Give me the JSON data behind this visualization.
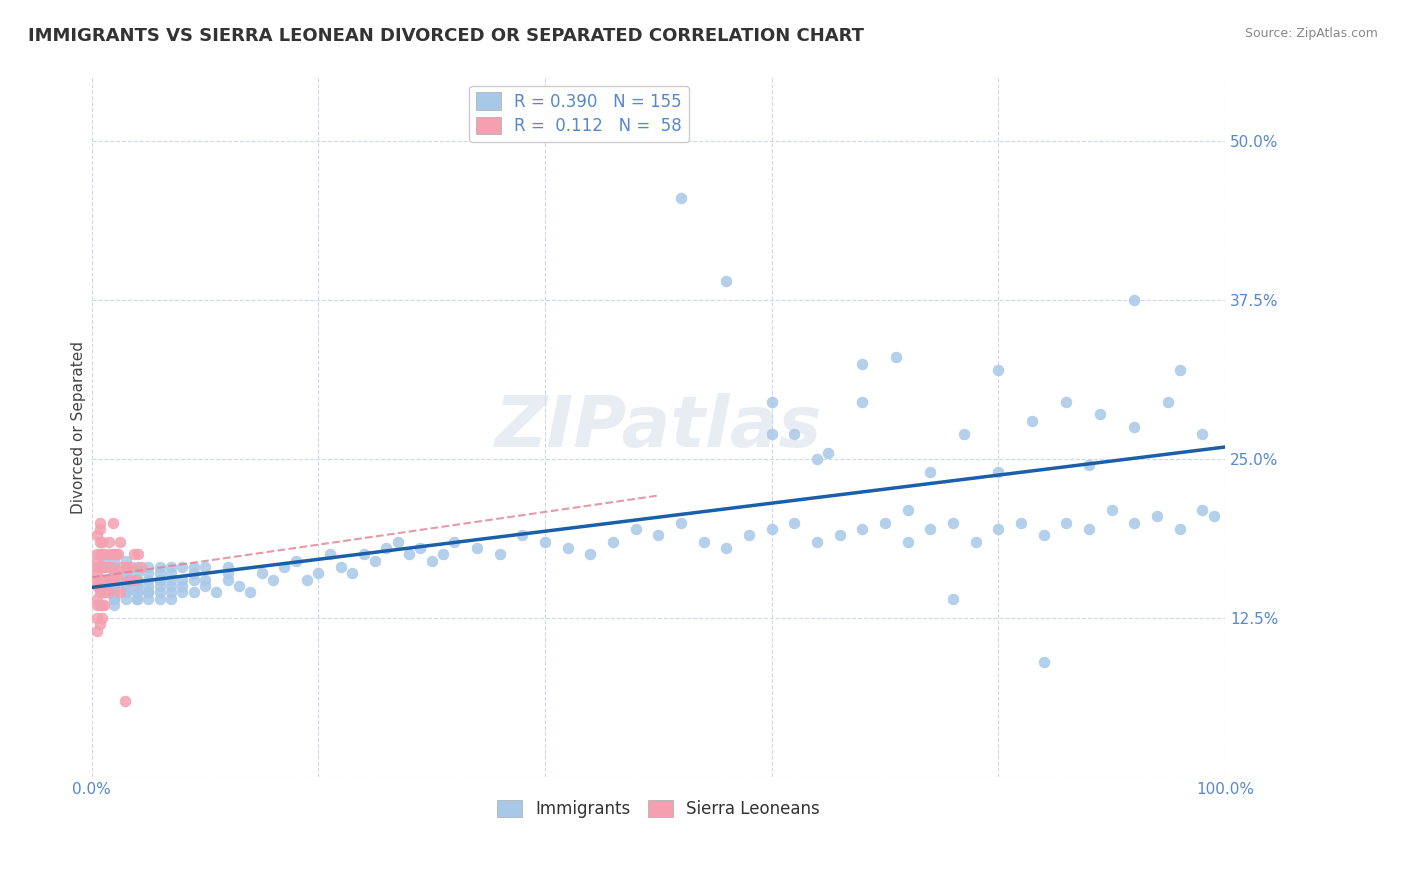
{
  "title": "IMMIGRANTS VS SIERRA LEONEAN DIVORCED OR SEPARATED CORRELATION CHART",
  "source_text": "Source: ZipAtlas.com",
  "watermark": "ZIPatlas",
  "xlabel": "",
  "ylabel": "Divorced or Separated",
  "xlim": [
    0.0,
    1.0
  ],
  "ylim": [
    0.0,
    0.55
  ],
  "yticks": [
    0.0,
    0.125,
    0.25,
    0.375,
    0.5
  ],
  "ytick_labels": [
    "",
    "12.5%",
    "25.0%",
    "37.5%",
    "50.0%"
  ],
  "xtick_labels": [
    "0.0%",
    "",
    "",
    "",
    "",
    "100.0%"
  ],
  "legend_immigrants_R": "0.390",
  "legend_immigrants_N": "155",
  "legend_sierraleoneans_R": "0.112",
  "legend_sierraleoneans_N": "58",
  "immigrants_color": "#a8c8e8",
  "sierraleoneans_color": "#f4a0b0",
  "immigrants_line_color": "#1a5fa8",
  "sierraleoneans_line_color": "#e08090",
  "background_color": "#ffffff",
  "grid_color": "#d0d8e8",
  "title_fontsize": 13,
  "label_fontsize": 11,
  "tick_fontsize": 11,
  "immigrants_x": [
    0.01,
    0.01,
    0.01,
    0.01,
    0.02,
    0.02,
    0.02,
    0.02,
    0.02,
    0.02,
    0.02,
    0.02,
    0.02,
    0.02,
    0.02,
    0.02,
    0.02,
    0.02,
    0.02,
    0.03,
    0.03,
    0.03,
    0.03,
    0.03,
    0.03,
    0.03,
    0.03,
    0.03,
    0.03,
    0.03,
    0.04,
    0.04,
    0.04,
    0.04,
    0.04,
    0.04,
    0.04,
    0.04,
    0.04,
    0.04,
    0.05,
    0.05,
    0.05,
    0.05,
    0.05,
    0.05,
    0.05,
    0.06,
    0.06,
    0.06,
    0.06,
    0.06,
    0.06,
    0.06,
    0.07,
    0.07,
    0.07,
    0.07,
    0.07,
    0.07,
    0.08,
    0.08,
    0.08,
    0.08,
    0.09,
    0.09,
    0.09,
    0.09,
    0.1,
    0.1,
    0.1,
    0.11,
    0.12,
    0.12,
    0.12,
    0.13,
    0.14,
    0.15,
    0.16,
    0.17,
    0.18,
    0.19,
    0.2,
    0.21,
    0.22,
    0.23,
    0.24,
    0.25,
    0.26,
    0.27,
    0.28,
    0.29,
    0.3,
    0.31,
    0.32,
    0.34,
    0.36,
    0.38,
    0.4,
    0.42,
    0.44,
    0.46,
    0.48,
    0.5,
    0.52,
    0.54,
    0.56,
    0.58,
    0.6,
    0.62,
    0.64,
    0.66,
    0.68,
    0.7,
    0.72,
    0.74,
    0.76,
    0.78,
    0.8,
    0.82,
    0.84,
    0.86,
    0.88,
    0.9,
    0.92,
    0.94,
    0.96,
    0.98,
    0.6,
    0.62,
    0.65,
    0.68,
    0.71,
    0.74,
    0.77,
    0.8,
    0.83,
    0.86,
    0.89,
    0.92,
    0.95,
    0.98,
    0.52,
    0.56,
    0.6,
    0.64,
    0.68,
    0.72,
    0.76,
    0.8,
    0.84,
    0.88,
    0.92,
    0.96,
    0.99
  ],
  "immigrants_y": [
    0.165,
    0.155,
    0.145,
    0.17,
    0.16,
    0.15,
    0.14,
    0.155,
    0.165,
    0.175,
    0.145,
    0.135,
    0.15,
    0.16,
    0.17,
    0.145,
    0.155,
    0.165,
    0.14,
    0.15,
    0.16,
    0.145,
    0.155,
    0.14,
    0.165,
    0.17,
    0.155,
    0.145,
    0.16,
    0.15,
    0.145,
    0.155,
    0.14,
    0.165,
    0.15,
    0.16,
    0.155,
    0.145,
    0.14,
    0.15,
    0.145,
    0.155,
    0.15,
    0.16,
    0.14,
    0.165,
    0.145,
    0.155,
    0.15,
    0.145,
    0.16,
    0.14,
    0.165,
    0.155,
    0.155,
    0.15,
    0.145,
    0.16,
    0.165,
    0.14,
    0.165,
    0.15,
    0.155,
    0.145,
    0.16,
    0.165,
    0.145,
    0.155,
    0.155,
    0.165,
    0.15,
    0.145,
    0.16,
    0.165,
    0.155,
    0.15,
    0.145,
    0.16,
    0.155,
    0.165,
    0.17,
    0.155,
    0.16,
    0.175,
    0.165,
    0.16,
    0.175,
    0.17,
    0.18,
    0.185,
    0.175,
    0.18,
    0.17,
    0.175,
    0.185,
    0.18,
    0.175,
    0.19,
    0.185,
    0.18,
    0.175,
    0.185,
    0.195,
    0.19,
    0.2,
    0.185,
    0.18,
    0.19,
    0.195,
    0.2,
    0.185,
    0.19,
    0.195,
    0.2,
    0.185,
    0.195,
    0.2,
    0.185,
    0.195,
    0.2,
    0.19,
    0.2,
    0.195,
    0.21,
    0.2,
    0.205,
    0.195,
    0.21,
    0.27,
    0.27,
    0.255,
    0.295,
    0.33,
    0.24,
    0.27,
    0.24,
    0.28,
    0.295,
    0.285,
    0.275,
    0.295,
    0.27,
    0.455,
    0.39,
    0.295,
    0.25,
    0.325,
    0.21,
    0.14,
    0.32,
    0.09,
    0.245,
    0.375,
    0.32,
    0.205
  ],
  "sierraleoneans_x": [
    0.005,
    0.005,
    0.005,
    0.005,
    0.005,
    0.005,
    0.005,
    0.005,
    0.005,
    0.005,
    0.005,
    0.007,
    0.007,
    0.007,
    0.007,
    0.007,
    0.007,
    0.007,
    0.007,
    0.007,
    0.009,
    0.009,
    0.009,
    0.009,
    0.009,
    0.009,
    0.009,
    0.011,
    0.011,
    0.011,
    0.011,
    0.011,
    0.013,
    0.013,
    0.013,
    0.015,
    0.015,
    0.015,
    0.017,
    0.017,
    0.019,
    0.019,
    0.019,
    0.021,
    0.021,
    0.023,
    0.023,
    0.025,
    0.025,
    0.027,
    0.029,
    0.031,
    0.033,
    0.035,
    0.037,
    0.039,
    0.041,
    0.043
  ],
  "sierraleoneans_y": [
    0.165,
    0.15,
    0.19,
    0.155,
    0.14,
    0.175,
    0.135,
    0.17,
    0.16,
    0.125,
    0.115,
    0.175,
    0.155,
    0.145,
    0.165,
    0.135,
    0.12,
    0.195,
    0.185,
    0.2,
    0.155,
    0.145,
    0.165,
    0.135,
    0.185,
    0.175,
    0.125,
    0.175,
    0.165,
    0.145,
    0.135,
    0.155,
    0.145,
    0.165,
    0.155,
    0.185,
    0.175,
    0.145,
    0.165,
    0.155,
    0.2,
    0.175,
    0.155,
    0.16,
    0.175,
    0.155,
    0.175,
    0.145,
    0.185,
    0.165,
    0.06,
    0.165,
    0.155,
    0.165,
    0.175,
    0.155,
    0.175,
    0.165
  ]
}
